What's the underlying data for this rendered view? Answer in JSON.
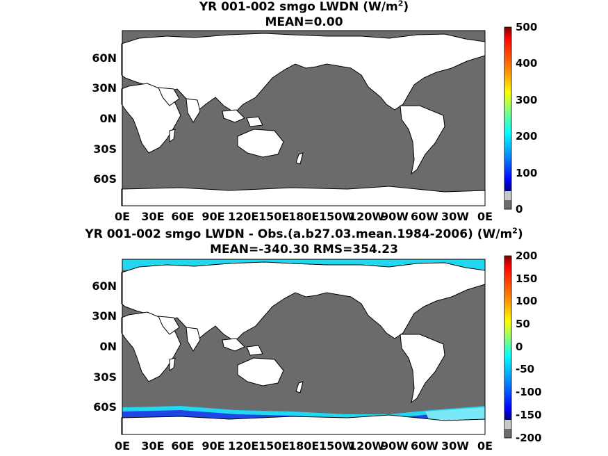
{
  "panel1": {
    "title_main": "YR 001-002 smgo LWDN (W/m",
    "title_sup": "2",
    "title_end": ")",
    "subtitle": "MEAN=0.00",
    "colorbar_ticks": [
      "500",
      "400",
      "300",
      "200",
      "100",
      "0"
    ],
    "colorbar_range": [
      0,
      500
    ]
  },
  "panel2": {
    "title_main": "YR 001-002 smgo LWDN - Obs.(a.b27.03.mean.1984-2006) (W/m",
    "title_sup": "2",
    "title_end": ")",
    "subtitle": "MEAN=-340.30 RMS=354.23",
    "colorbar_ticks": [
      "200",
      "150",
      "100",
      "50",
      "0",
      "-50",
      "-100",
      "-150",
      "-200"
    ],
    "colorbar_range": [
      -200,
      200
    ]
  },
  "lat_labels": [
    "60N",
    "30N",
    "0N",
    "30S",
    "60S"
  ],
  "lon_labels": [
    "0E",
    "30E",
    "60E",
    "90E",
    "120E",
    "150E",
    "180E",
    "150W",
    "120W",
    "90W",
    "60W",
    "30W",
    "0E"
  ],
  "colors": {
    "ocean": "#6b6b6b",
    "land": "#ffffff",
    "diff_cyan": "#22d8f0",
    "diff_blue": "#1e46e6",
    "diff_light": "#7ae8f6"
  },
  "colormap": [
    "#7f0000",
    "#ff0000",
    "#ff7f00",
    "#ffff00",
    "#7fff7f",
    "#00ffff",
    "#007fff",
    "#0000ff",
    "#00007f"
  ]
}
